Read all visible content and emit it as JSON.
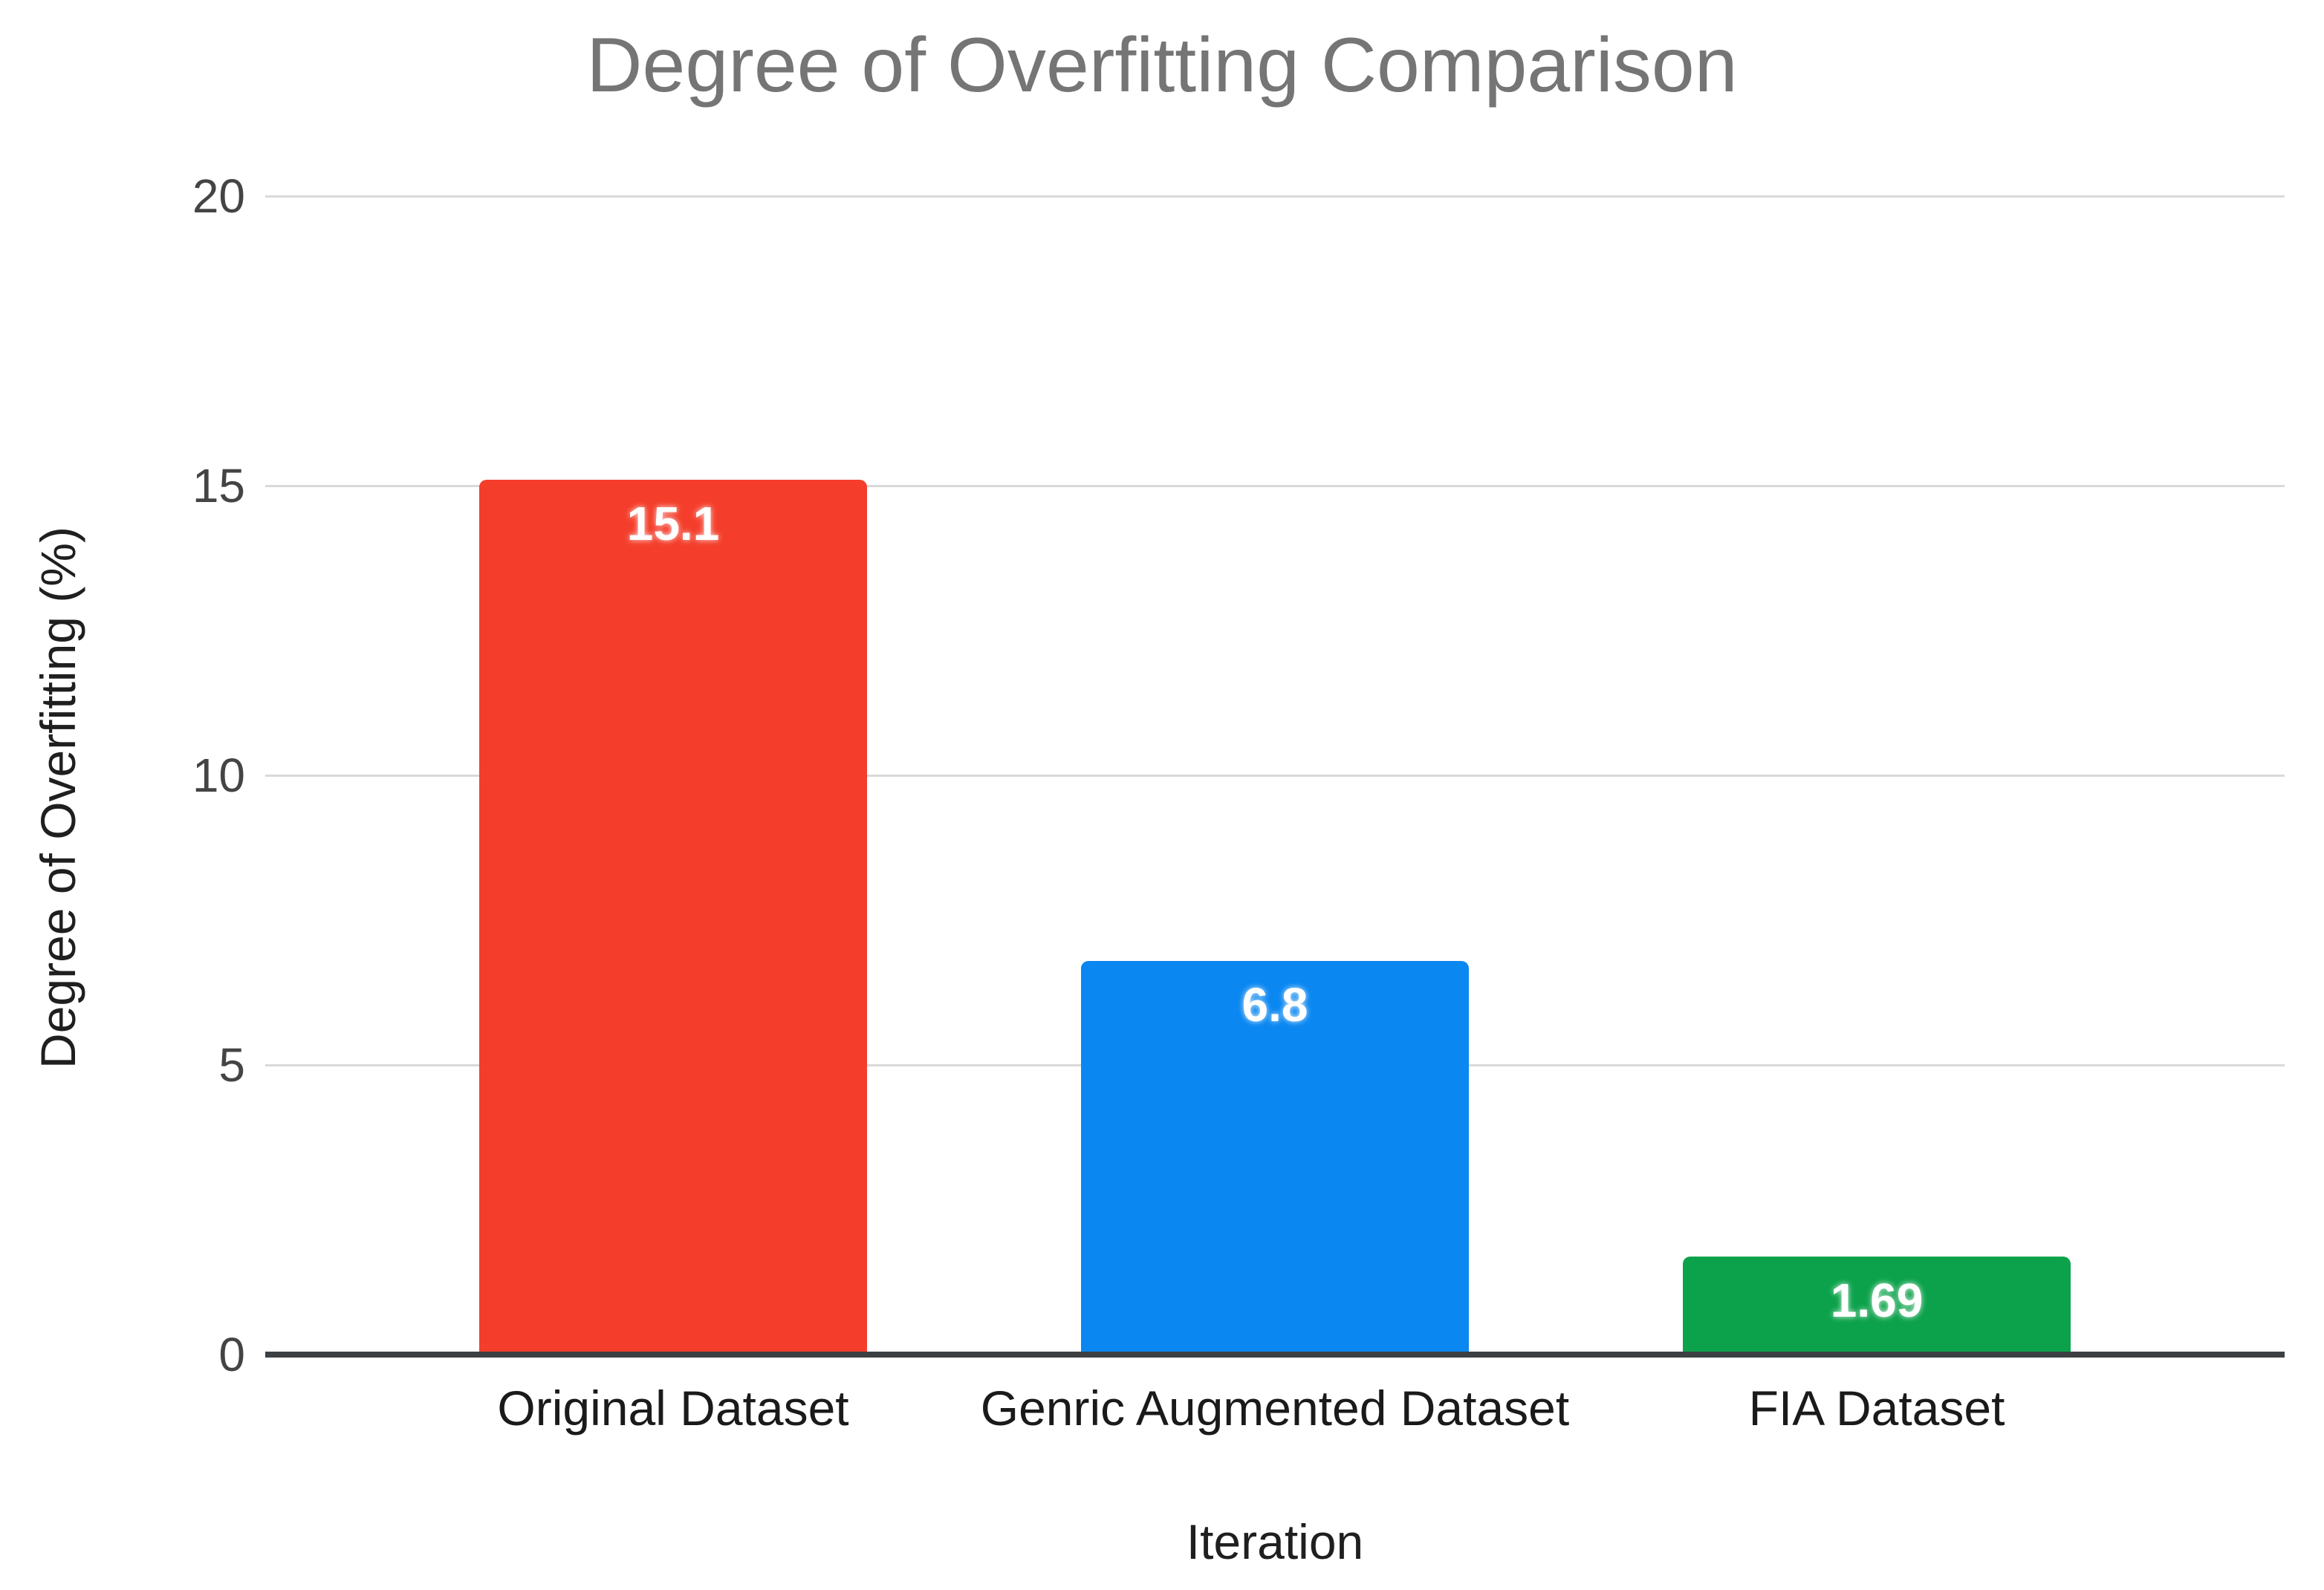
{
  "chart_data": {
    "type": "bar",
    "title": "Degree of Overfitting Comparison",
    "xlabel": "Iteration",
    "ylabel": "Degree of Overfitting (%)",
    "categories": [
      "Original Dataset",
      "Genric Augmented Dataset",
      "FIA Dataset"
    ],
    "values": [
      15.1,
      6.8,
      1.69
    ],
    "value_labels": [
      "15.1",
      "6.8",
      "1.69"
    ],
    "bar_colors": [
      "#f43e2b",
      "#0a87f1",
      "#0ca24b"
    ],
    "yticks": [
      "0",
      "5",
      "10",
      "15",
      "20"
    ],
    "ytick_values": [
      0,
      5,
      10,
      15,
      20
    ],
    "ylim": [
      0,
      20
    ],
    "grid": true,
    "legend_position": "none",
    "colors": {
      "title_text": "#757575",
      "axis_text": "#1f1f1f",
      "tick_text": "#444444",
      "gridline": "#d9d9d9",
      "baseline": "#3c4043",
      "value_label_text": "#ffffff",
      "background": "#ffffff"
    }
  }
}
